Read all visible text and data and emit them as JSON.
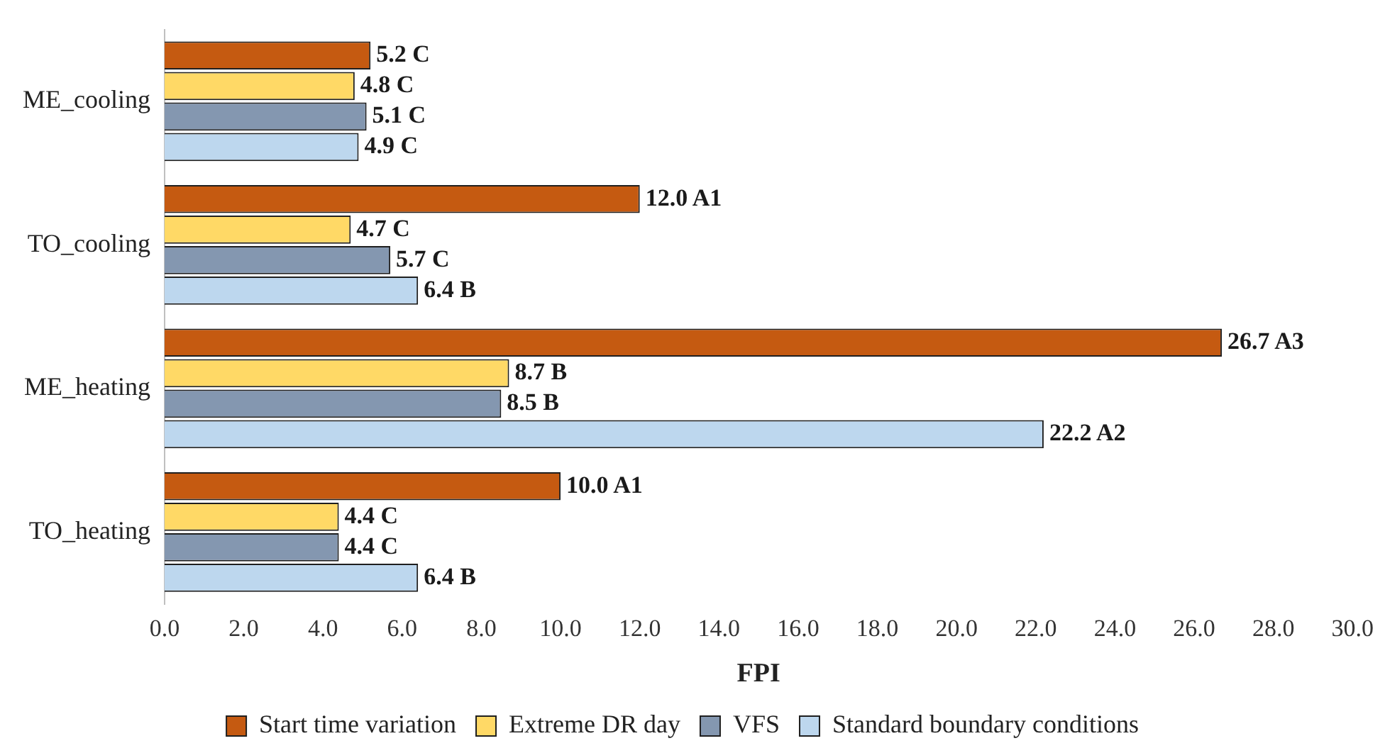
{
  "chart_data": {
    "type": "bar",
    "orientation": "horizontal",
    "xlabel": "FPI",
    "categories": [
      "ME_cooling",
      "TO_cooling",
      "ME_heating",
      "TO_heating"
    ],
    "series": [
      {
        "name": "Start time variation",
        "color": "#c55a11",
        "values": [
          5.2,
          12.0,
          26.7,
          10.0
        ],
        "value_labels": [
          "5.2 C",
          "12.0 A1",
          "26.7 A3",
          "10.0 A1"
        ]
      },
      {
        "name": "Extreme DR day",
        "color": "#ffd966",
        "values": [
          4.8,
          4.7,
          8.7,
          4.4
        ],
        "value_labels": [
          "4.8 C",
          "4.7 C",
          "8.7 B",
          "4.4 C"
        ]
      },
      {
        "name": "VFS",
        "color": "#8497b0",
        "values": [
          5.1,
          5.7,
          8.5,
          4.4
        ],
        "value_labels": [
          "5.1 C",
          "5.7 C",
          "8.5 B",
          "4.4 C"
        ]
      },
      {
        "name": "Standard boundary conditions",
        "color": "#bdd7ee",
        "values": [
          4.9,
          6.4,
          22.2,
          6.4
        ],
        "value_labels": [
          "4.9 C",
          "6.4 B",
          "22.2 A2",
          "6.4 B"
        ]
      }
    ],
    "xlim": [
      0,
      30
    ],
    "xticks": [
      {
        "value": 0,
        "label": "0.0"
      },
      {
        "value": 2,
        "label": "2.0"
      },
      {
        "value": 4,
        "label": "4.0"
      },
      {
        "value": 6,
        "label": "6.0"
      },
      {
        "value": 8,
        "label": "8.0"
      },
      {
        "value": 10,
        "label": "10.0"
      },
      {
        "value": 12,
        "label": "12.0"
      },
      {
        "value": 14,
        "label": "14.0"
      },
      {
        "value": 16,
        "label": "16.0"
      },
      {
        "value": 18,
        "label": "18.0"
      },
      {
        "value": 20,
        "label": "20.0"
      },
      {
        "value": 22,
        "label": "22.0"
      },
      {
        "value": 24,
        "label": "24.0"
      },
      {
        "value": 26,
        "label": "26.0"
      },
      {
        "value": 28,
        "label": "28.0"
      },
      {
        "value": 30,
        "label": "30.0"
      }
    ],
    "grid": false,
    "legend": "bottom"
  }
}
